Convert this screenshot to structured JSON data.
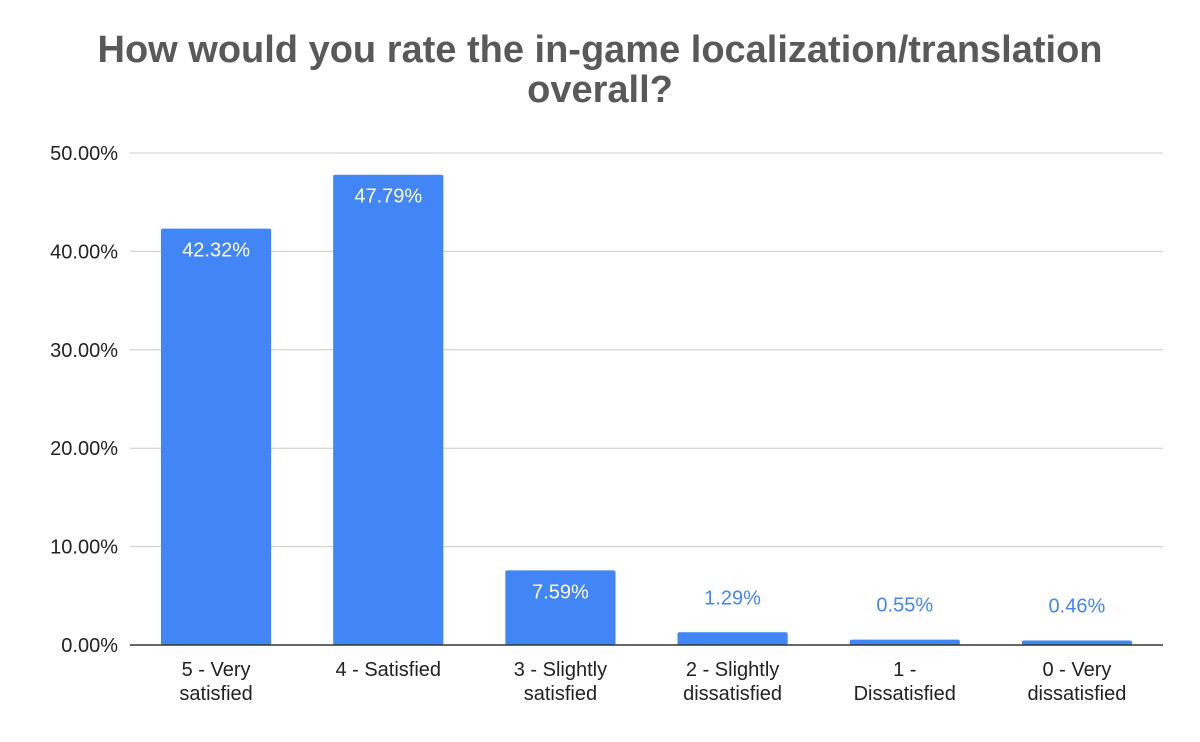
{
  "chart_data": {
    "type": "bar",
    "title": [
      "How would you rate the in-game localization/translation",
      "overall?"
    ],
    "categories": [
      [
        "5 - Very",
        "satisfied"
      ],
      [
        "4 - Satisfied"
      ],
      [
        "3 - Slightly",
        "satisfied"
      ],
      [
        "2 - Slightly",
        "dissatisfied"
      ],
      [
        "1 -",
        "Dissatisfied"
      ],
      [
        "0 - Very",
        "dissatisfied"
      ]
    ],
    "values": [
      42.32,
      47.79,
      7.59,
      1.29,
      0.55,
      0.46
    ],
    "data_labels": [
      "42.32%",
      "47.79%",
      "7.59%",
      "1.29%",
      "0.55%",
      "0.46%"
    ],
    "yticks": [
      "0.00%",
      "10.00%",
      "20.00%",
      "30.00%",
      "40.00%",
      "50.00%"
    ],
    "ylim": [
      0,
      50
    ],
    "grid": true,
    "legend": "none",
    "bar_color": "#4285f4",
    "title_color": "#595959",
    "grid_color": "#cccccc",
    "axis_color": "#333333"
  }
}
